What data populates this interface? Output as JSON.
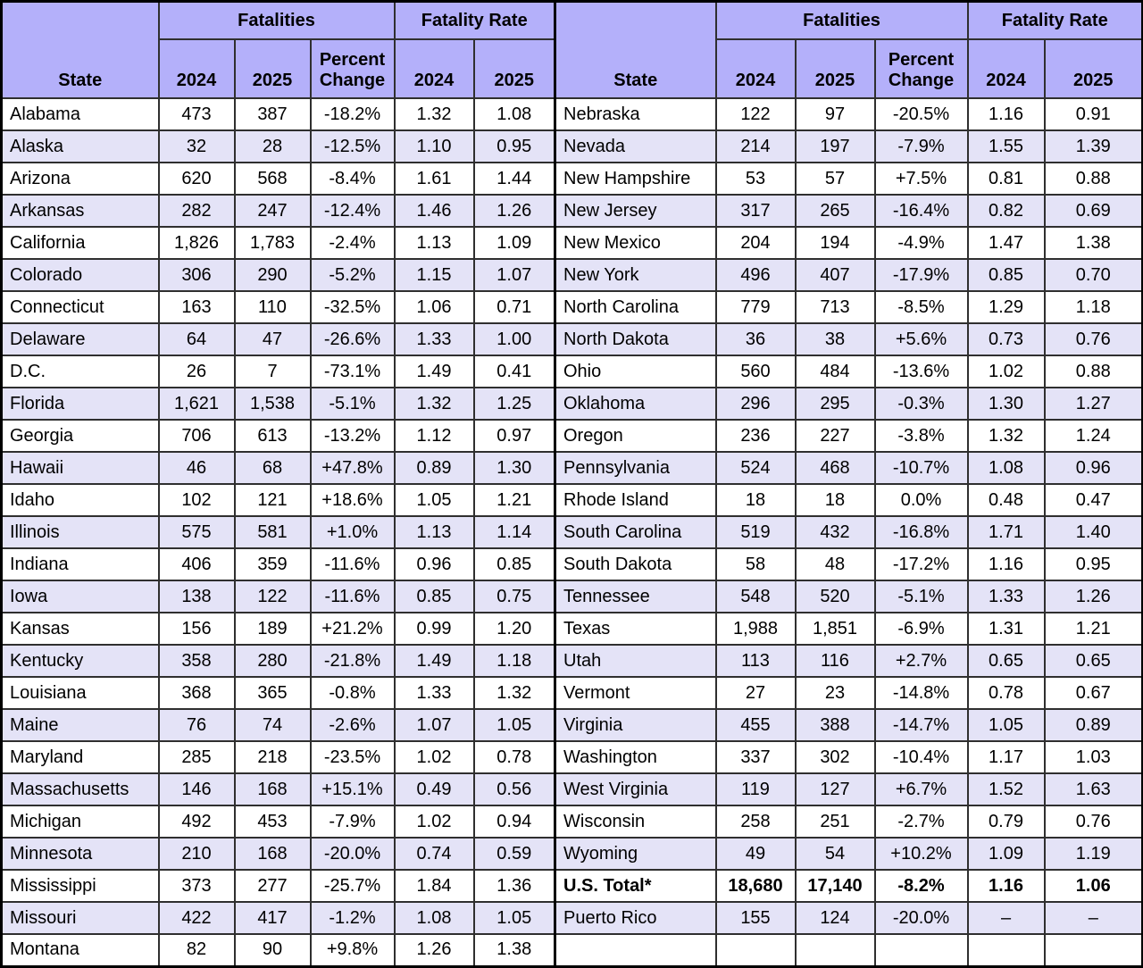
{
  "table": {
    "header": {
      "state": "State",
      "fatalities": "Fatalities",
      "fatality_rate": "Fatality Rate",
      "year_2024": "2024",
      "year_2025": "2025",
      "percent_change": "Percent\nChange"
    },
    "left_rows": [
      {
        "cells": [
          "Alabama",
          "473",
          "387",
          "-18.2%",
          "1.32",
          "1.08"
        ]
      },
      {
        "cells": [
          "Alaska",
          "32",
          "28",
          "-12.5%",
          "1.10",
          "0.95"
        ]
      },
      {
        "cells": [
          "Arizona",
          "620",
          "568",
          "-8.4%",
          "1.61",
          "1.44"
        ]
      },
      {
        "cells": [
          "Arkansas",
          "282",
          "247",
          "-12.4%",
          "1.46",
          "1.26"
        ]
      },
      {
        "cells": [
          "California",
          "1,826",
          "1,783",
          "-2.4%",
          "1.13",
          "1.09"
        ]
      },
      {
        "cells": [
          "Colorado",
          "306",
          "290",
          "-5.2%",
          "1.15",
          "1.07"
        ]
      },
      {
        "cells": [
          "Connecticut",
          "163",
          "110",
          "-32.5%",
          "1.06",
          "0.71"
        ]
      },
      {
        "cells": [
          "Delaware",
          "64",
          "47",
          "-26.6%",
          "1.33",
          "1.00"
        ]
      },
      {
        "cells": [
          "D.C.",
          "26",
          "7",
          "-73.1%",
          "1.49",
          "0.41"
        ]
      },
      {
        "cells": [
          "Florida",
          "1,621",
          "1,538",
          "-5.1%",
          "1.32",
          "1.25"
        ]
      },
      {
        "cells": [
          "Georgia",
          "706",
          "613",
          "-13.2%",
          "1.12",
          "0.97"
        ]
      },
      {
        "cells": [
          "Hawaii",
          "46",
          "68",
          "+47.8%",
          "0.89",
          "1.30"
        ]
      },
      {
        "cells": [
          "Idaho",
          "102",
          "121",
          "+18.6%",
          "1.05",
          "1.21"
        ]
      },
      {
        "cells": [
          "Illinois",
          "575",
          "581",
          "+1.0%",
          "1.13",
          "1.14"
        ]
      },
      {
        "cells": [
          "Indiana",
          "406",
          "359",
          "-11.6%",
          "0.96",
          "0.85"
        ]
      },
      {
        "cells": [
          "Iowa",
          "138",
          "122",
          "-11.6%",
          "0.85",
          "0.75"
        ]
      },
      {
        "cells": [
          "Kansas",
          "156",
          "189",
          "+21.2%",
          "0.99",
          "1.20"
        ]
      },
      {
        "cells": [
          "Kentucky",
          "358",
          "280",
          "-21.8%",
          "1.49",
          "1.18"
        ]
      },
      {
        "cells": [
          "Louisiana",
          "368",
          "365",
          "-0.8%",
          "1.33",
          "1.32"
        ]
      },
      {
        "cells": [
          "Maine",
          "76",
          "74",
          "-2.6%",
          "1.07",
          "1.05"
        ]
      },
      {
        "cells": [
          "Maryland",
          "285",
          "218",
          "-23.5%",
          "1.02",
          "0.78"
        ]
      },
      {
        "cells": [
          "Massachusetts",
          "146",
          "168",
          "+15.1%",
          "0.49",
          "0.56"
        ]
      },
      {
        "cells": [
          "Michigan",
          "492",
          "453",
          "-7.9%",
          "1.02",
          "0.94"
        ]
      },
      {
        "cells": [
          "Minnesota",
          "210",
          "168",
          "-20.0%",
          "0.74",
          "0.59"
        ]
      },
      {
        "cells": [
          "Mississippi",
          "373",
          "277",
          "-25.7%",
          "1.84",
          "1.36"
        ]
      },
      {
        "cells": [
          "Missouri",
          "422",
          "417",
          "-1.2%",
          "1.08",
          "1.05"
        ]
      },
      {
        "cells": [
          "Montana",
          "82",
          "90",
          "+9.8%",
          "1.26",
          "1.38"
        ]
      }
    ],
    "right_rows": [
      {
        "cells": [
          "Nebraska",
          "122",
          "97",
          "-20.5%",
          "1.16",
          "0.91"
        ]
      },
      {
        "cells": [
          "Nevada",
          "214",
          "197",
          "-7.9%",
          "1.55",
          "1.39"
        ]
      },
      {
        "cells": [
          "New Hampshire",
          "53",
          "57",
          "+7.5%",
          "0.81",
          "0.88"
        ]
      },
      {
        "cells": [
          "New Jersey",
          "317",
          "265",
          "-16.4%",
          "0.82",
          "0.69"
        ]
      },
      {
        "cells": [
          "New Mexico",
          "204",
          "194",
          "-4.9%",
          "1.47",
          "1.38"
        ]
      },
      {
        "cells": [
          "New York",
          "496",
          "407",
          "-17.9%",
          "0.85",
          "0.70"
        ]
      },
      {
        "cells": [
          "North Carolina",
          "779",
          "713",
          "-8.5%",
          "1.29",
          "1.18"
        ]
      },
      {
        "cells": [
          "North Dakota",
          "36",
          "38",
          "+5.6%",
          "0.73",
          "0.76"
        ]
      },
      {
        "cells": [
          "Ohio",
          "560",
          "484",
          "-13.6%",
          "1.02",
          "0.88"
        ]
      },
      {
        "cells": [
          "Oklahoma",
          "296",
          "295",
          "-0.3%",
          "1.30",
          "1.27"
        ]
      },
      {
        "cells": [
          "Oregon",
          "236",
          "227",
          "-3.8%",
          "1.32",
          "1.24"
        ]
      },
      {
        "cells": [
          "Pennsylvania",
          "524",
          "468",
          "-10.7%",
          "1.08",
          "0.96"
        ]
      },
      {
        "cells": [
          "Rhode Island",
          "18",
          "18",
          "0.0%",
          "0.48",
          "0.47"
        ]
      },
      {
        "cells": [
          "South Carolina",
          "519",
          "432",
          "-16.8%",
          "1.71",
          "1.40"
        ]
      },
      {
        "cells": [
          "South Dakota",
          "58",
          "48",
          "-17.2%",
          "1.16",
          "0.95"
        ]
      },
      {
        "cells": [
          "Tennessee",
          "548",
          "520",
          "-5.1%",
          "1.33",
          "1.26"
        ]
      },
      {
        "cells": [
          "Texas",
          "1,988",
          "1,851",
          "-6.9%",
          "1.31",
          "1.21"
        ]
      },
      {
        "cells": [
          "Utah",
          "113",
          "116",
          "+2.7%",
          "0.65",
          "0.65"
        ]
      },
      {
        "cells": [
          "Vermont",
          "27",
          "23",
          "-14.8%",
          "0.78",
          "0.67"
        ]
      },
      {
        "cells": [
          "Virginia",
          "455",
          "388",
          "-14.7%",
          "1.05",
          "0.89"
        ]
      },
      {
        "cells": [
          "Washington",
          "337",
          "302",
          "-10.4%",
          "1.17",
          "1.03"
        ]
      },
      {
        "cells": [
          "West Virginia",
          "119",
          "127",
          "+6.7%",
          "1.52",
          "1.63"
        ]
      },
      {
        "cells": [
          "Wisconsin",
          "258",
          "251",
          "-2.7%",
          "0.79",
          "0.76"
        ]
      },
      {
        "cells": [
          "Wyoming",
          "49",
          "54",
          "+10.2%",
          "1.09",
          "1.19"
        ]
      },
      {
        "cells": [
          "U.S. Total*",
          "18,680",
          "17,140",
          "-8.2%",
          "1.16",
          "1.06"
        ],
        "bold": true
      },
      {
        "cells": [
          "Puerto Rico",
          "155",
          "124",
          "-20.0%",
          "–",
          "–"
        ]
      },
      {
        "cells": [
          "",
          "",
          "",
          "",
          "",
          ""
        ]
      }
    ],
    "colors": {
      "header_bg": "#b4b0fa",
      "stripe_bg": "#e4e3f7",
      "text": "#000000",
      "border": "#2f2f2f"
    }
  }
}
